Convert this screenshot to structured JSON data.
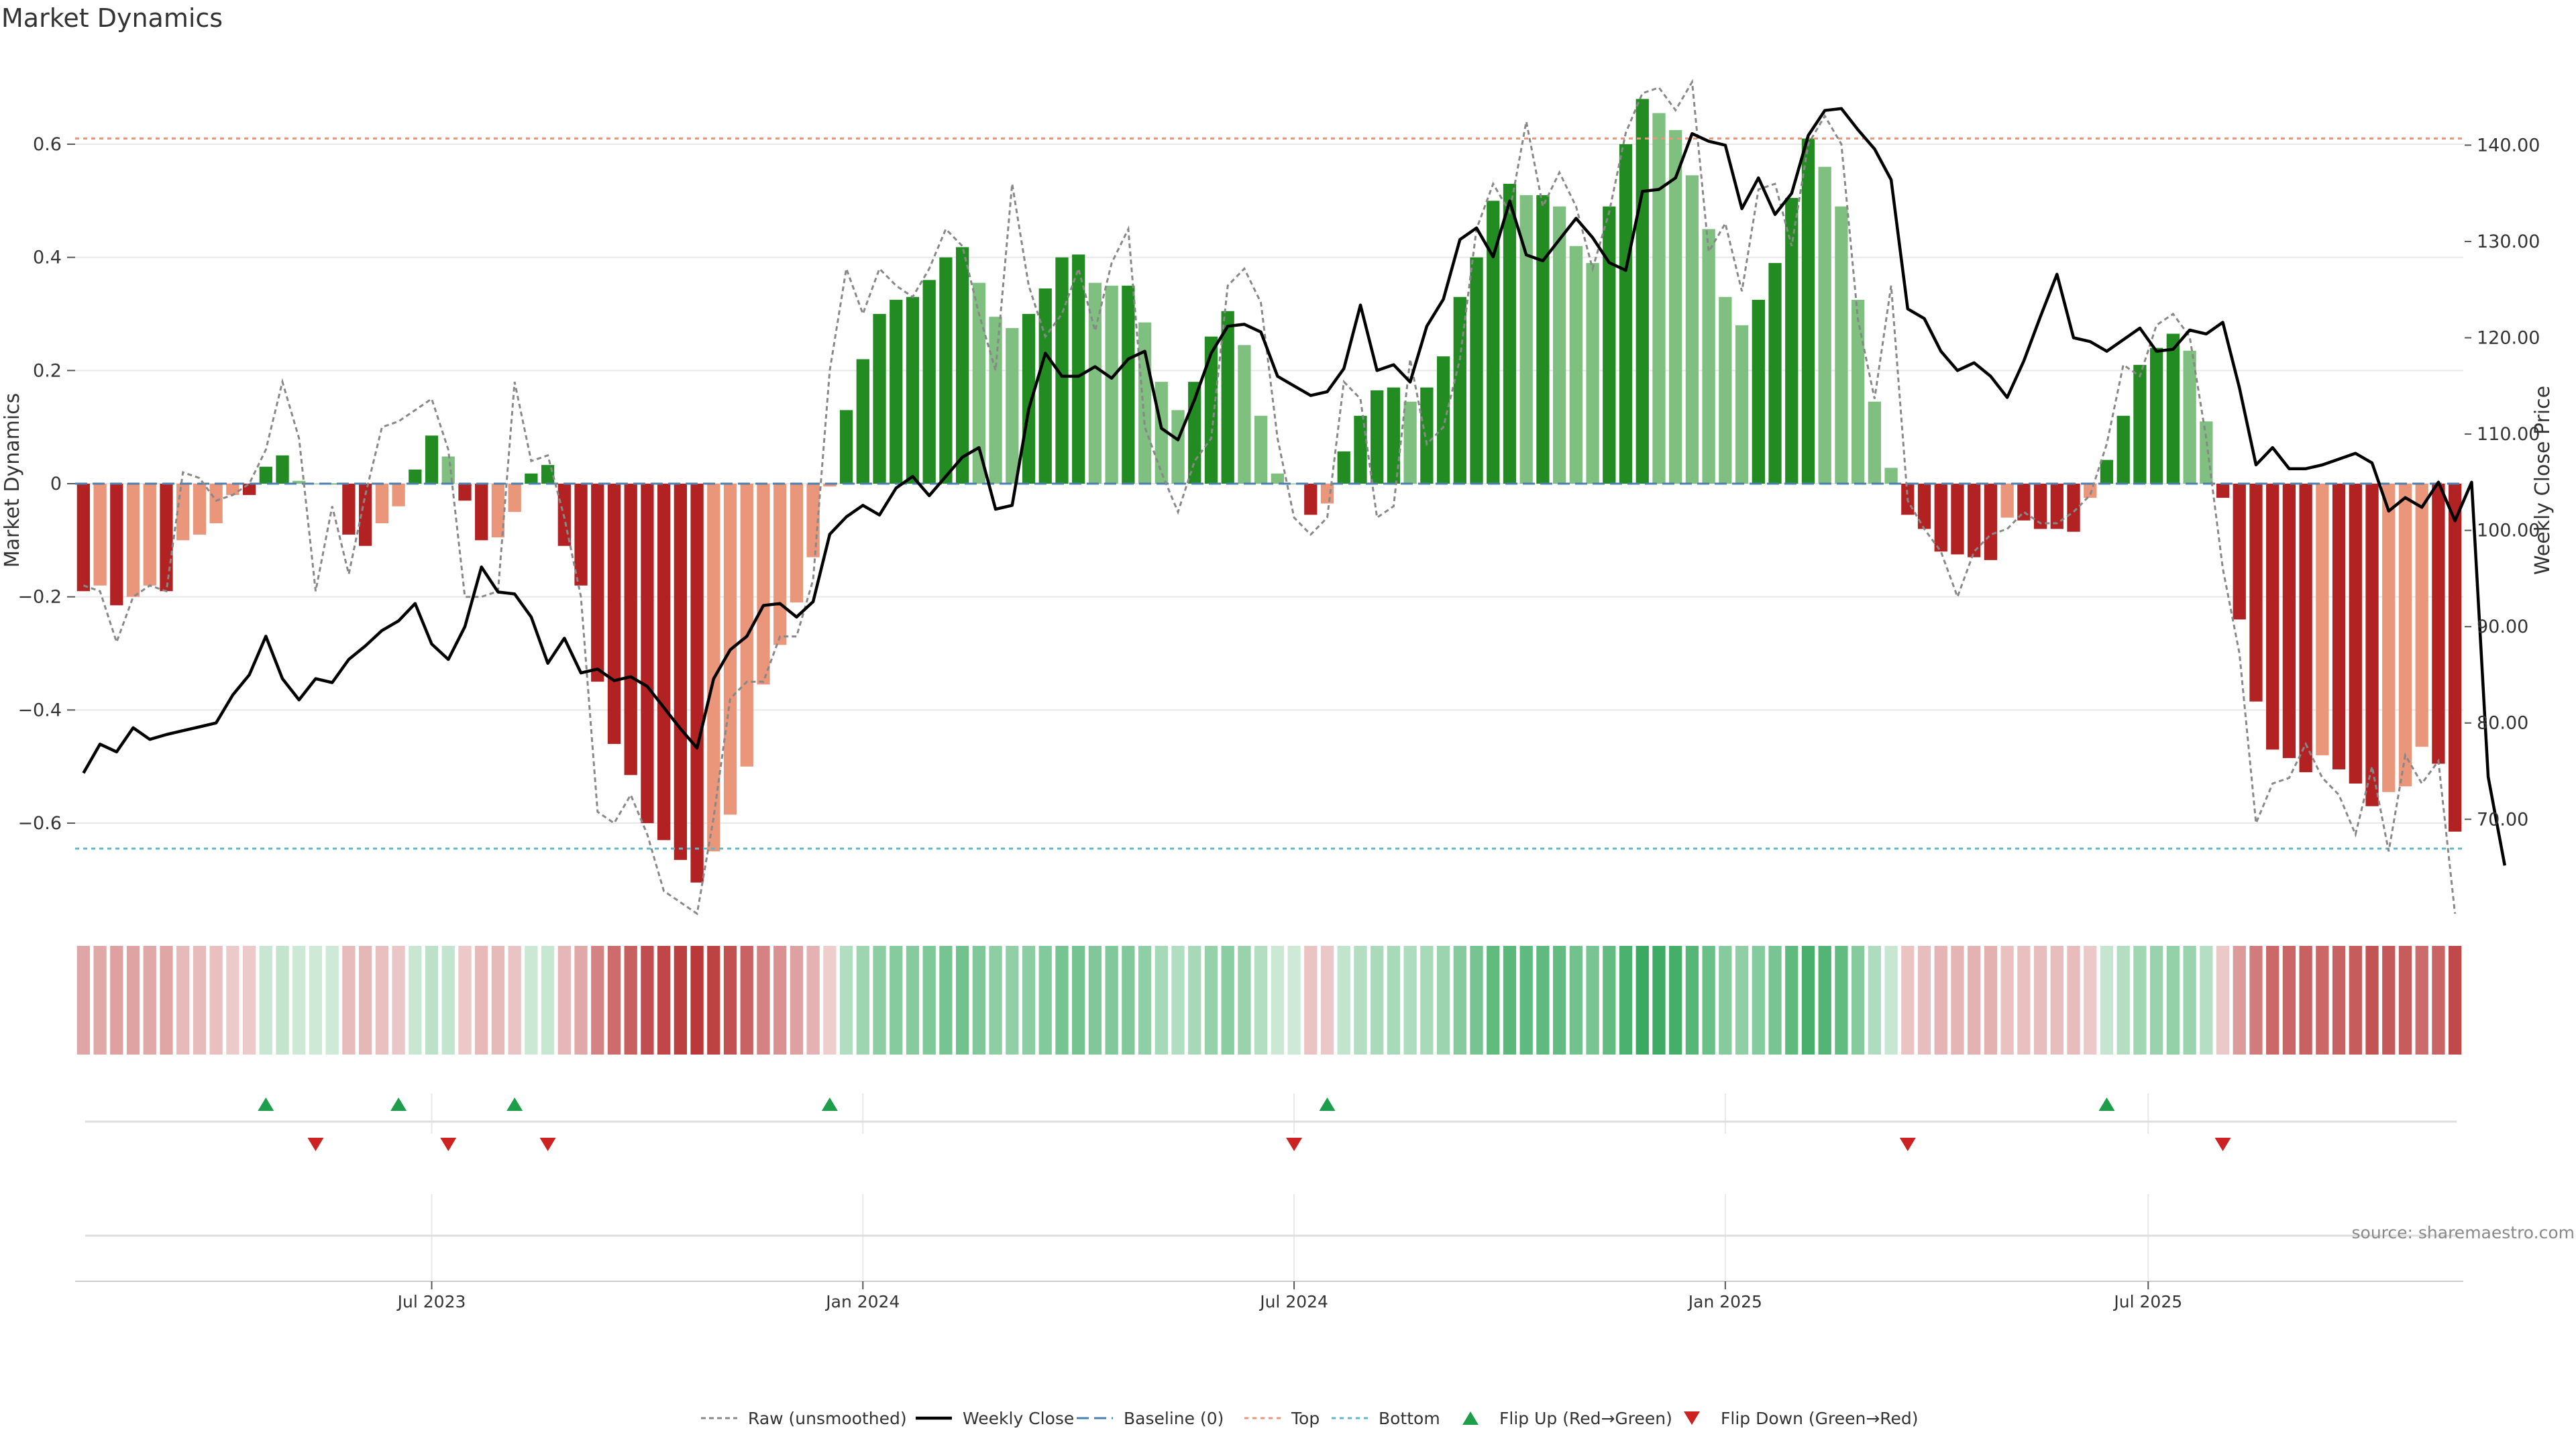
{
  "chart_data": {
    "type": "bar",
    "title": "Market Dynamics",
    "ylabel_left": "Market Dynamics",
    "ylabel_right": "Weekly Close Price",
    "source": "source: sharemaestro.com",
    "ylim_left": [
      -0.76,
      0.76
    ],
    "ylim_right": [
      60.2,
      149.5
    ],
    "left_ticks": [
      {
        "value": -0.6,
        "label": "−0.6"
      },
      {
        "value": -0.4,
        "label": "−0.4"
      },
      {
        "value": -0.2,
        "label": "−0.2"
      },
      {
        "value": 0,
        "label": "0"
      },
      {
        "value": 0.2,
        "label": "0.2"
      },
      {
        "value": 0.4,
        "label": "0.4"
      },
      {
        "value": 0.6,
        "label": "0.6"
      }
    ],
    "right_ticks": [
      {
        "value": 70,
        "label": "70.00"
      },
      {
        "value": 80,
        "label": "80.00"
      },
      {
        "value": 90,
        "label": "90.00"
      },
      {
        "value": 100,
        "label": "100.00"
      },
      {
        "value": 110,
        "label": "110.00"
      },
      {
        "value": 120,
        "label": "120.00"
      },
      {
        "value": 130,
        "label": "130.00"
      },
      {
        "value": 140,
        "label": "140.00"
      }
    ],
    "x_ticks": [
      {
        "index": 21.5,
        "label": "Jul 2023"
      },
      {
        "index": 47.5,
        "label": "Jan 2024"
      },
      {
        "index": 73.5,
        "label": "Jul 2024"
      },
      {
        "index": 99.5,
        "label": "Jan 2025"
      },
      {
        "index": 125,
        "label": "Jul 2025"
      }
    ],
    "top_threshold": 0.61,
    "bottom_threshold": -0.645,
    "baseline": 0,
    "grid": true,
    "legend_position": "bottom",
    "legend": [
      {
        "key": "raw",
        "label": "Raw (unsmoothed)"
      },
      {
        "key": "close",
        "label": "Weekly Close"
      },
      {
        "key": "baseline",
        "label": "Baseline (0)"
      },
      {
        "key": "top",
        "label": "Top"
      },
      {
        "key": "bottom",
        "label": "Bottom"
      },
      {
        "key": "flip_up",
        "label": "Flip Up (Red→Green)"
      },
      {
        "key": "flip_down",
        "label": "Flip Down (Green→Red)"
      }
    ],
    "colors": {
      "strong_green": "#228b22",
      "light_green": "#7fbf7f",
      "strong_red": "#b22222",
      "light_red": "#e9967a",
      "close": "#000000",
      "raw": "#888888",
      "baseline": "#4a7fb0",
      "top": "#e9967a",
      "bottom": "#5fb7c9",
      "flip_up": "#1e9e4a",
      "flip_down": "#cc2222"
    },
    "dynamics": [
      -0.19,
      -0.18,
      -0.215,
      -0.2,
      -0.18,
      -0.19,
      -0.1,
      -0.09,
      -0.07,
      -0.02,
      -0.02,
      0.03,
      0.05,
      0.005,
      0,
      0,
      -0.09,
      -0.11,
      -0.07,
      -0.04,
      0.025,
      0.085,
      0.048,
      -0.03,
      -0.1,
      -0.095,
      -0.05,
      0.018,
      0.033,
      -0.11,
      -0.18,
      -0.35,
      -0.46,
      -0.515,
      -0.6,
      -0.63,
      -0.665,
      -0.705,
      -0.65,
      -0.585,
      -0.5,
      -0.355,
      -0.285,
      -0.21,
      -0.13,
      -0.005,
      0.13,
      0.22,
      0.3,
      0.325,
      0.33,
      0.36,
      0.4,
      0.418,
      0.355,
      0.295,
      0.275,
      0.3,
      0.345,
      0.4,
      0.405,
      0.355,
      0.35,
      0.35,
      0.285,
      0.18,
      0.13,
      0.18,
      0.26,
      0.305,
      0.245,
      0.12,
      0.018,
      0,
      -0.055,
      -0.035,
      0.057,
      0.12,
      0.165,
      0.17,
      0.145,
      0.17,
      0.225,
      0.33,
      0.4,
      0.5,
      0.53,
      0.51,
      0.51,
      0.49,
      0.42,
      0.39,
      0.49,
      0.6,
      0.68,
      0.655,
      0.625,
      0.545,
      0.45,
      0.33,
      0.28,
      0.325,
      0.39,
      0.505,
      0.61,
      0.56,
      0.49,
      0.325,
      0.145,
      0.028,
      -0.055,
      -0.08,
      -0.12,
      -0.125,
      -0.13,
      -0.135,
      -0.06,
      -0.065,
      -0.08,
      -0.08,
      -0.085,
      -0.025,
      0.042,
      0.12,
      0.21,
      0.24,
      0.265,
      0.235,
      0.11,
      -0.025,
      -0.24,
      -0.385,
      -0.47,
      -0.485,
      -0.51,
      -0.48,
      -0.505,
      -0.53,
      -0.57,
      -0.545,
      -0.535,
      -0.465,
      -0.495,
      -0.615
    ],
    "raw": [
      -0.18,
      -0.19,
      -0.28,
      -0.2,
      -0.18,
      -0.19,
      0.02,
      0.01,
      -0.03,
      -0.02,
      0,
      0.06,
      0.18,
      0.08,
      -0.19,
      -0.04,
      -0.16,
      -0.02,
      0.1,
      0.11,
      0.13,
      0.15,
      0.06,
      -0.2,
      -0.2,
      -0.19,
      0.18,
      0.04,
      0.05,
      -0.06,
      -0.2,
      -0.58,
      -0.6,
      -0.55,
      -0.62,
      -0.72,
      -0.74,
      -0.76,
      -0.59,
      -0.38,
      -0.35,
      -0.35,
      -0.27,
      -0.27,
      -0.17,
      0.2,
      0.38,
      0.3,
      0.38,
      0.35,
      0.33,
      0.38,
      0.45,
      0.42,
      0.3,
      0.2,
      0.53,
      0.35,
      0.26,
      0.3,
      0.38,
      0.27,
      0.39,
      0.45,
      0.1,
      0.02,
      -0.05,
      0.04,
      0.08,
      0.35,
      0.38,
      0.32,
      0.08,
      -0.06,
      -0.09,
      -0.06,
      0.18,
      0.15,
      -0.06,
      -0.04,
      0.22,
      0.07,
      0.1,
      0.22,
      0.45,
      0.53,
      0.48,
      0.64,
      0.49,
      0.55,
      0.49,
      0.38,
      0.48,
      0.62,
      0.69,
      0.7,
      0.66,
      0.71,
      0.41,
      0.46,
      0.34,
      0.52,
      0.53,
      0.42,
      0.6,
      0.65,
      0.6,
      0.29,
      0.15,
      0.35,
      -0.03,
      -0.08,
      -0.12,
      -0.2,
      -0.12,
      -0.09,
      -0.08,
      -0.05,
      -0.07,
      -0.07,
      -0.05,
      -0.02,
      0.07,
      0.21,
      0.19,
      0.28,
      0.3,
      0.26,
      0.08,
      -0.15,
      -0.3,
      -0.6,
      -0.53,
      -0.52,
      -0.46,
      -0.52,
      -0.55,
      -0.62,
      -0.5,
      -0.65,
      -0.48,
      -0.53,
      -0.49,
      -0.76
    ],
    "close": [
      74.8,
      77.8,
      77,
      79.5,
      78.3,
      78.8,
      79.2,
      79.6,
      80,
      82.9,
      85,
      89,
      84.6,
      82.4,
      84.6,
      84.2,
      86.6,
      88,
      89.6,
      90.6,
      92.4,
      88.2,
      86.6,
      90,
      96.2,
      93.6,
      93.4,
      91,
      86.2,
      88.8,
      85.2,
      85.6,
      84.4,
      84.8,
      83.8,
      81.6,
      79.4,
      77.4,
      84.6,
      87.6,
      89,
      92.2,
      92.4,
      91,
      92.6,
      99.6,
      101.4,
      102.6,
      101.6,
      104.4,
      105.6,
      103.6,
      105.6,
      107.6,
      108.6,
      102.2,
      102.6,
      112.6,
      118.4,
      116,
      116,
      117,
      115.8,
      117.8,
      118.6,
      110.6,
      109.4,
      113.6,
      118.4,
      121.2,
      121.4,
      120.6,
      116,
      115,
      114,
      114.4,
      116.8,
      123.4,
      116.6,
      117.2,
      115.4,
      121.2,
      124,
      130.2,
      131.4,
      128.4,
      134.2,
      128.6,
      128,
      130.2,
      132.4,
      130.4,
      127.8,
      127,
      135.2,
      135.4,
      136.6,
      141.2,
      140.4,
      140,
      133.4,
      136.6,
      132.8,
      135,
      141,
      143.6,
      143.8,
      141.6,
      139.6,
      136.4,
      123,
      122,
      118.6,
      116.6,
      117.4,
      116,
      113.8,
      117.6,
      122.2,
      126.6,
      120,
      119.6,
      118.6,
      119.8,
      121,
      118.6,
      118.8,
      120.8,
      120.4,
      121.6,
      114.8,
      106.8,
      108.6,
      106.4,
      106.4,
      106.8,
      107.4,
      108,
      107,
      102,
      103.4,
      102.4,
      105,
      101,
      105,
      74.4,
      65.2
    ],
    "flip_up": [
      11,
      19,
      26,
      45,
      75,
      122
    ],
    "flip_down": [
      14,
      22,
      28,
      73,
      110,
      129
    ]
  }
}
